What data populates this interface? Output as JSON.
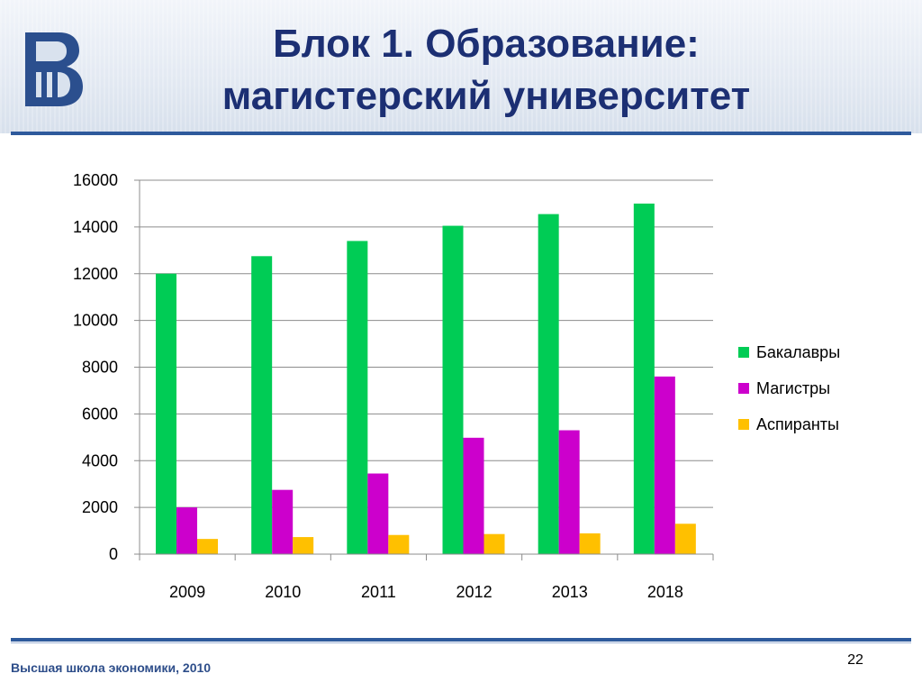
{
  "slide": {
    "title_line1": "Блок 1. Образование:",
    "title_line2": "магистерский университет",
    "footer": "Высшая школа экономики, 2010",
    "page_number": "22"
  },
  "colors": {
    "header_line": "#2e5a9c",
    "title_text": "#1c2f73",
    "logo": "#2b4f8e"
  },
  "chart_data": {
    "type": "bar",
    "title": "",
    "xlabel": "",
    "ylabel": "",
    "categories": [
      "2009",
      "2010",
      "2011",
      "2012",
      "2013",
      "2018"
    ],
    "series": [
      {
        "name": "Бакалавры",
        "color": "#00cc55",
        "values": [
          12000,
          12750,
          13400,
          14050,
          14550,
          15000
        ]
      },
      {
        "name": "Магистры",
        "color": "#cc00cc",
        "values": [
          2000,
          2750,
          3450,
          4980,
          5300,
          7600
        ]
      },
      {
        "name": "Аспиранты",
        "color": "#ffc000",
        "values": [
          650,
          730,
          820,
          860,
          890,
          1300
        ]
      }
    ],
    "ylim": [
      0,
      16000
    ],
    "yticks": [
      "0",
      "2000",
      "4000",
      "6000",
      "8000",
      "10000",
      "12000",
      "14000",
      "16000"
    ],
    "grid": true,
    "legend_position": "right"
  }
}
